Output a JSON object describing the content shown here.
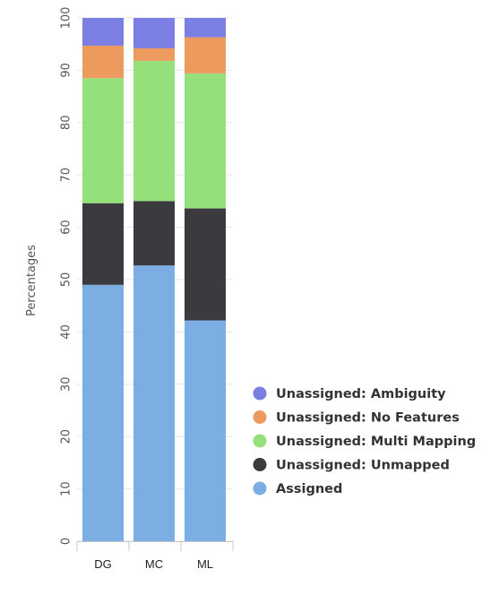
{
  "chart_data": {
    "type": "bar",
    "stacked": true,
    "categories": [
      "DG",
      "MC",
      "ML"
    ],
    "ylabel": "Percentages",
    "xlabel": "",
    "title": "",
    "ylim": [
      0,
      100
    ],
    "yticks": [
      0,
      10,
      20,
      30,
      40,
      50,
      60,
      70,
      80,
      90,
      100
    ],
    "legend_position": "bottom-right",
    "series": [
      {
        "name": "Assigned",
        "color": "#7cade3",
        "values": [
          49.0,
          52.7,
          42.2
        ]
      },
      {
        "name": "Unassigned: Unmapped",
        "color": "#3a3a3f",
        "values": [
          15.6,
          12.3,
          21.4
        ]
      },
      {
        "name": "Unassigned: Multi Mapping",
        "color": "#95e07b",
        "values": [
          23.9,
          26.8,
          25.8
        ]
      },
      {
        "name": "Unassigned: No Features",
        "color": "#ec9a5e",
        "values": [
          6.2,
          2.4,
          6.9
        ]
      },
      {
        "name": "Unassigned: Ambiguity",
        "color": "#7b7ee3",
        "values": [
          5.3,
          5.8,
          3.7
        ]
      }
    ],
    "legend_order": [
      "Unassigned: Ambiguity",
      "Unassigned: No Features",
      "Unassigned: Multi Mapping",
      "Unassigned: Unmapped",
      "Assigned"
    ]
  }
}
